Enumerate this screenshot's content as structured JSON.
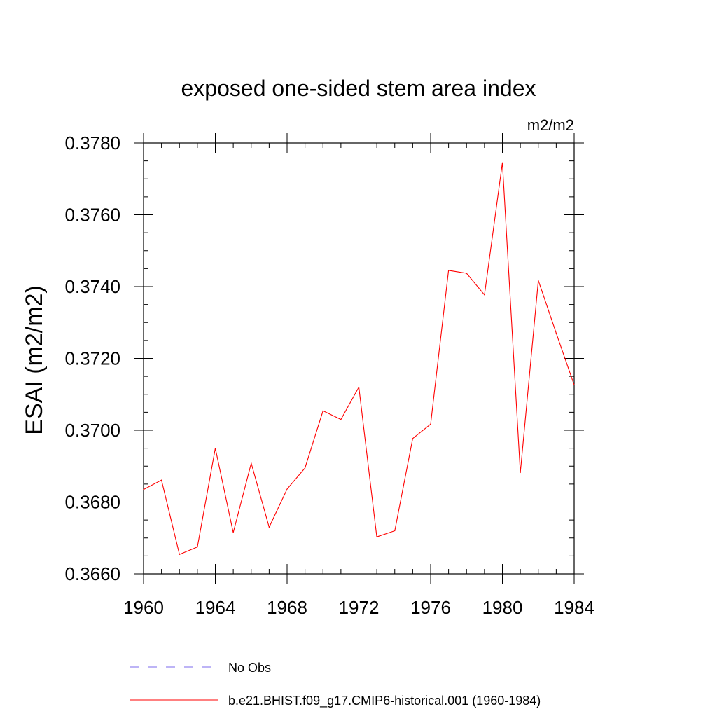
{
  "chart_data": {
    "type": "line",
    "title": "exposed one-sided stem area index",
    "units_label": "m2/m2",
    "ylabel": "ESAI  (m2/m2)",
    "xlabel": "",
    "xlim": [
      1960,
      1984
    ],
    "ylim": [
      0.366,
      0.378
    ],
    "x_ticks": [
      "1960",
      "1964",
      "1968",
      "1972",
      "1976",
      "1980",
      "1984"
    ],
    "y_ticks": [
      "0.3660",
      "0.3680",
      "0.3700",
      "0.3720",
      "0.3740",
      "0.3760",
      "0.3780"
    ],
    "grid": false,
    "legend_position": "bottom",
    "series": [
      {
        "name": "b.e21.BHIST.f09_g17.CMIP6-historical.001 (1960-1984)",
        "color": "#ff0000",
        "style": "solid",
        "x": [
          1960,
          1961,
          1962,
          1963,
          1964,
          1965,
          1966,
          1967,
          1968,
          1969,
          1970,
          1971,
          1972,
          1973,
          1974,
          1975,
          1976,
          1977,
          1978,
          1979,
          1980,
          1981,
          1982,
          1983,
          1984
        ],
        "values": [
          0.36835,
          0.36861,
          0.36654,
          0.36675,
          0.3695,
          0.36715,
          0.36908,
          0.3673,
          0.36836,
          0.36895,
          0.37054,
          0.3703,
          0.3712,
          0.36703,
          0.3672,
          0.36977,
          0.37017,
          0.37445,
          0.37437,
          0.37377,
          0.37745,
          0.36882,
          0.37417,
          0.3727,
          0.37126
        ]
      }
    ],
    "legend": [
      {
        "label": "No Obs",
        "color": "#7b68ee",
        "style": "dashed"
      },
      {
        "label": "b.e21.BHIST.f09_g17.CMIP6-historical.001 (1960-1984)",
        "color": "#ff0000",
        "style": "solid"
      }
    ]
  }
}
